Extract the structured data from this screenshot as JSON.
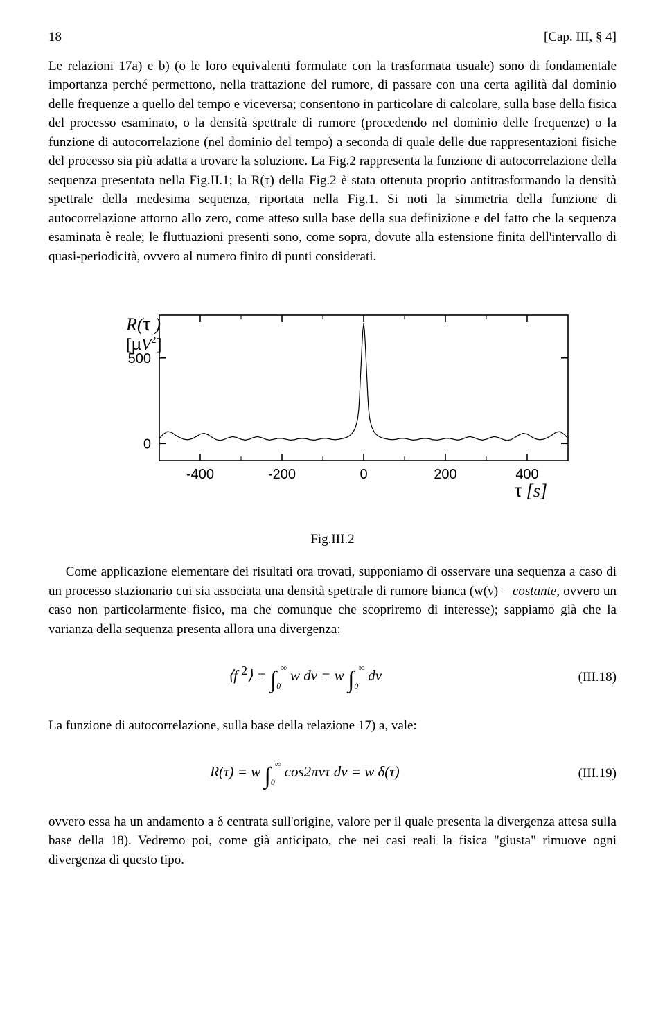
{
  "header": {
    "page_num": "18",
    "chapter_ref": "[Cap. III, § 4]"
  },
  "para1": "Le relazioni 17a) e b) (o le loro equivalenti formulate con la trasformata usuale) sono di fondamentale importanza perché permettono, nella trattazione del rumore, di passare con una certa agilità dal dominio delle frequenze a quello del tempo e viceversa; consentono in particolare di calcolare, sulla base della fisica del processo esaminato, o la densità spettrale di rumore (procedendo nel dominio delle frequenze) o la funzione di autocorrelazione (nel dominio del tempo) a seconda di quale delle due rappresentazioni fisiche del processo sia più adatta a trovare la soluzione. La Fig.2 rappresenta la funzione di autocorrelazione della sequenza presentata nella Fig.II.1; la R(τ) della Fig.2 è stata ottenuta proprio antitrasformando la densità spettrale della medesima sequenza, riportata nella Fig.1. Si noti la simmetria della funzione di autocorrelazione attorno allo zero, come atteso sulla base della sua definizione e del fatto che la sequenza esaminata è reale; le fluttuazioni presenti sono, come sopra, dovute alla estensione finita dell'intervallo di quasi-periodicità, ovvero al numero finito di punti considerati.",
  "chart": {
    "type": "line",
    "ylabel_line1": "R(τ )",
    "ylabel_line2": "[µV²]",
    "ylabel_line2_parts": {
      "open": "[",
      "mu": "µ",
      "V": "V",
      "exp": "2",
      "close": "]"
    },
    "xlabel": "τ [s]",
    "xlabel_parts": {
      "tau": "τ",
      "unit": " [s]"
    },
    "y_ticks": [
      0,
      500
    ],
    "x_ticks": [
      -400,
      -200,
      0,
      200,
      400
    ],
    "x_range": [
      -500,
      500
    ],
    "y_range": [
      -100,
      750
    ],
    "baseline_y": 0,
    "peak_y": 700,
    "background_color": "#ffffff",
    "axis_color": "#000000",
    "line_color": "#000000",
    "line_width": 1.2,
    "axis_width": 1.6,
    "tick_len_major": 10,
    "tick_len_minor": 6,
    "font_size_axis": 20,
    "font_size_label": 26,
    "series": [
      [
        -500,
        30
      ],
      [
        -490,
        55
      ],
      [
        -480,
        70
      ],
      [
        -470,
        65
      ],
      [
        -460,
        48
      ],
      [
        -450,
        35
      ],
      [
        -440,
        25
      ],
      [
        -430,
        22
      ],
      [
        -420,
        28
      ],
      [
        -410,
        40
      ],
      [
        -400,
        55
      ],
      [
        -390,
        60
      ],
      [
        -380,
        50
      ],
      [
        -370,
        35
      ],
      [
        -360,
        22
      ],
      [
        -350,
        18
      ],
      [
        -340,
        25
      ],
      [
        -330,
        35
      ],
      [
        -320,
        40
      ],
      [
        -310,
        35
      ],
      [
        -300,
        25
      ],
      [
        -290,
        20
      ],
      [
        -280,
        25
      ],
      [
        -270,
        35
      ],
      [
        -260,
        40
      ],
      [
        -250,
        35
      ],
      [
        -240,
        25
      ],
      [
        -230,
        20
      ],
      [
        -220,
        25
      ],
      [
        -210,
        30
      ],
      [
        -200,
        30
      ],
      [
        -190,
        25
      ],
      [
        -180,
        20
      ],
      [
        -170,
        22
      ],
      [
        -160,
        28
      ],
      [
        -150,
        30
      ],
      [
        -140,
        28
      ],
      [
        -130,
        22
      ],
      [
        -120,
        20
      ],
      [
        -110,
        25
      ],
      [
        -100,
        30
      ],
      [
        -90,
        30
      ],
      [
        -80,
        25
      ],
      [
        -70,
        22
      ],
      [
        -60,
        25
      ],
      [
        -50,
        30
      ],
      [
        -40,
        38
      ],
      [
        -35,
        45
      ],
      [
        -30,
        55
      ],
      [
        -25,
        70
      ],
      [
        -20,
        95
      ],
      [
        -15,
        140
      ],
      [
        -12,
        200
      ],
      [
        -10,
        280
      ],
      [
        -8,
        380
      ],
      [
        -6,
        480
      ],
      [
        -4,
        580
      ],
      [
        -2,
        660
      ],
      [
        0,
        700
      ],
      [
        2,
        660
      ],
      [
        4,
        580
      ],
      [
        6,
        480
      ],
      [
        8,
        380
      ],
      [
        10,
        280
      ],
      [
        12,
        200
      ],
      [
        15,
        140
      ],
      [
        20,
        95
      ],
      [
        25,
        70
      ],
      [
        30,
        55
      ],
      [
        35,
        45
      ],
      [
        40,
        38
      ],
      [
        50,
        30
      ],
      [
        60,
        25
      ],
      [
        70,
        22
      ],
      [
        80,
        25
      ],
      [
        90,
        30
      ],
      [
        100,
        30
      ],
      [
        110,
        25
      ],
      [
        120,
        20
      ],
      [
        130,
        22
      ],
      [
        140,
        28
      ],
      [
        150,
        30
      ],
      [
        160,
        28
      ],
      [
        170,
        22
      ],
      [
        180,
        20
      ],
      [
        190,
        25
      ],
      [
        200,
        30
      ],
      [
        210,
        30
      ],
      [
        220,
        25
      ],
      [
        230,
        20
      ],
      [
        240,
        25
      ],
      [
        250,
        35
      ],
      [
        260,
        40
      ],
      [
        270,
        35
      ],
      [
        280,
        25
      ],
      [
        290,
        20
      ],
      [
        300,
        25
      ],
      [
        310,
        35
      ],
      [
        320,
        40
      ],
      [
        330,
        35
      ],
      [
        340,
        25
      ],
      [
        350,
        18
      ],
      [
        360,
        22
      ],
      [
        370,
        35
      ],
      [
        380,
        50
      ],
      [
        390,
        60
      ],
      [
        400,
        55
      ],
      [
        410,
        40
      ],
      [
        420,
        28
      ],
      [
        430,
        22
      ],
      [
        440,
        25
      ],
      [
        450,
        35
      ],
      [
        460,
        48
      ],
      [
        470,
        65
      ],
      [
        480,
        70
      ],
      [
        490,
        55
      ],
      [
        500,
        30
      ]
    ]
  },
  "caption": "Fig.III.2",
  "para2_pre": "Come applicazione elementare dei risultati ora trovati, supponiamo di osservare una sequenza a caso di un processo stazionario cui sia associata una densità spettrale di rumore bianca (w(ν) = ",
  "para2_costante": "costante",
  "para2_post": ", ovvero un caso non particolarmente fisico, ma che comunque che scopriremo di interesse); sappiamo già che la varianza della sequenza presenta allora una divergenza:",
  "eq18": {
    "text": "⟨f ²⟩ = ∫₀^∞ w dν = w ∫₀^∞ dν",
    "num": "(III.18)"
  },
  "para3": "La funzione di autocorrelazione, sulla base della relazione 17) a, vale:",
  "eq19": {
    "text": "R(τ) = w ∫₀^∞ cos2πντ dν = w δ(τ)",
    "num": "(III.19)"
  },
  "para4": "ovvero essa ha un andamento a δ centrata sull'origine, valore per il quale presenta la divergenza attesa sulla base della 18). Vedremo poi, come già anticipato, che nei casi reali la fisica \"giusta\" rimuove ogni divergenza di questo tipo."
}
